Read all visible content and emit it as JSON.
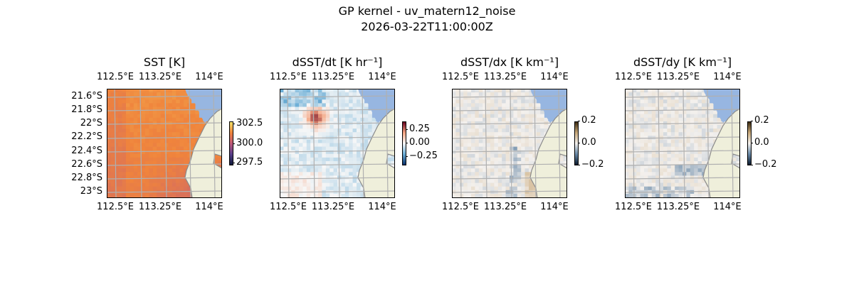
{
  "title": "GP kernel - uv_matern12_noise",
  "subtitle": "2026-03-22T11:00:00Z",
  "lon_ticks": [
    "112.5°E",
    "113.25°E",
    "114°E"
  ],
  "lat_ticks": [
    "21.6°S",
    "21.8°S",
    "22°S",
    "22.2°S",
    "22.4°S",
    "22.6°S",
    "22.8°S",
    "23°S"
  ],
  "colors": {
    "ocean": "#97b6e1",
    "land": "#efefdb",
    "coast": "#8a8a8a",
    "grid": "#b0b0b0"
  },
  "panels": [
    {
      "title": "SST [K]",
      "cmap": [
        "#0d1a3a",
        "#5a3f8c",
        "#c05a7a",
        "#f0843c",
        "#f4e36a"
      ],
      "vmin": 297.25,
      "vmax": 302.85,
      "ticks": [
        {
          "v": 302.5,
          "label": "302.5"
        },
        {
          "v": 300.0,
          "label": "300.0"
        },
        {
          "v": 297.5,
          "label": "297.5"
        }
      ]
    },
    {
      "title": "dSST/dt [K hr⁻¹]",
      "cmap": [
        "#08306b",
        "#6baed6",
        "#f7f7f7",
        "#f4a582",
        "#67001f"
      ],
      "vmin": -0.41,
      "vmax": 0.41,
      "ticks": [
        {
          "v": 0.25,
          "label": "0.25"
        },
        {
          "v": 0.0,
          "label": "0.00"
        },
        {
          "v": -0.25,
          "label": "−0.25"
        }
      ]
    },
    {
      "title": "dSST/dx [K km⁻¹]",
      "cmap": [
        "#0a1a2e",
        "#6a8aa8",
        "#f4f1ee",
        "#c9a97a",
        "#3a2a10"
      ],
      "vmin": -0.2,
      "vmax": 0.2,
      "ticks": [
        {
          "v": 0.2,
          "label": "0.2"
        },
        {
          "v": 0.0,
          "label": "0.0"
        },
        {
          "v": -0.2,
          "label": "−0.2"
        }
      ]
    },
    {
      "title": "dSST/dy [K km⁻¹]",
      "cmap": [
        "#0a1a2e",
        "#6a8aa8",
        "#f4f1ee",
        "#c9a97a",
        "#3a2a10"
      ],
      "vmin": -0.2,
      "vmax": 0.2,
      "ticks": [
        {
          "v": 0.2,
          "label": "0.2"
        },
        {
          "v": 0.0,
          "label": "0.0"
        },
        {
          "v": -0.2,
          "label": "−0.2"
        }
      ]
    }
  ]
}
